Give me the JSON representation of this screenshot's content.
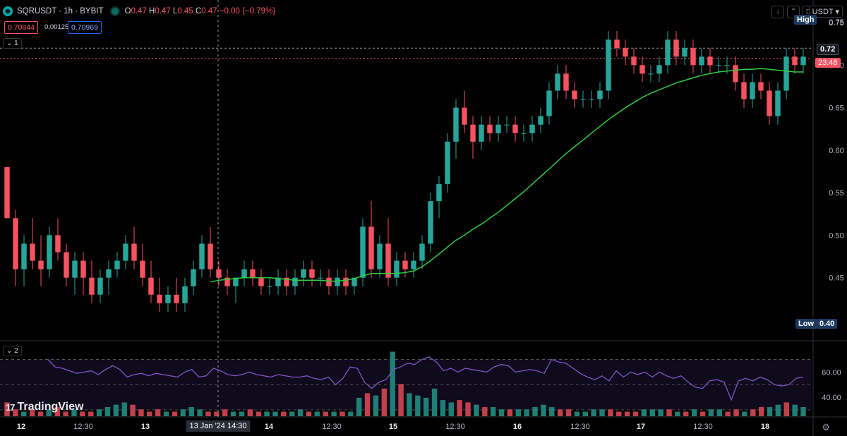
{
  "header": {
    "symbol": "SQRUSDT",
    "interval": "1h",
    "exchange": "BYBIT",
    "title": "SQRUSDT · 1h · BYBIT",
    "ohlc": {
      "o_label": "O",
      "o": "0.47",
      "h_label": "H",
      "h": "0.47",
      "l_label": "L",
      "l": "0.45",
      "c_label": "C",
      "c": "0.47",
      "change": "−0.00 (−0.79%)"
    },
    "bid": "0.70844",
    "spread": "0.00125",
    "ask": "0.70969",
    "pane1_label": "1",
    "pane2_label": "2",
    "currency": "USDT",
    "logo_text": "TradingView"
  },
  "colors": {
    "up": "#26a69a",
    "down": "#f7525f",
    "ma": "#2ecc40",
    "rsi": "#7e57c2",
    "crosshair": "#9598a1"
  },
  "chart_data": [
    {
      "type": "candlestick",
      "symbol": "SQRUSDT",
      "interval": "1h",
      "ylim": [
        0.38,
        0.76
      ],
      "y_ticks": [
        "0.45",
        "0.50",
        "0.55",
        "0.60",
        "0.65",
        "0.70",
        "0.75"
      ],
      "x_ticks": [
        "12",
        "12:30",
        "13",
        "13 Jan '24",
        "14:30",
        "14",
        "12:30",
        "15",
        "12:30",
        "16",
        "12:30",
        "17",
        "12:30",
        "18"
      ],
      "crosshair_time": "13 Jan '24  14:30",
      "last_price": "0.72",
      "countdown": "23:48",
      "high_label": "High",
      "high_value": "0.75",
      "low_label": "Low",
      "low_value": "0.40",
      "ohlc": [
        [
          0.58,
          0.58,
          0.52,
          0.52
        ],
        [
          0.52,
          0.53,
          0.44,
          0.46
        ],
        [
          0.46,
          0.5,
          0.44,
          0.49
        ],
        [
          0.49,
          0.52,
          0.46,
          0.47
        ],
        [
          0.47,
          0.5,
          0.44,
          0.46
        ],
        [
          0.46,
          0.51,
          0.45,
          0.5
        ],
        [
          0.5,
          0.52,
          0.47,
          0.48
        ],
        [
          0.48,
          0.49,
          0.44,
          0.45
        ],
        [
          0.45,
          0.48,
          0.43,
          0.47
        ],
        [
          0.47,
          0.48,
          0.43,
          0.45
        ],
        [
          0.45,
          0.47,
          0.42,
          0.43
        ],
        [
          0.43,
          0.46,
          0.42,
          0.45
        ],
        [
          0.45,
          0.47,
          0.43,
          0.46
        ],
        [
          0.46,
          0.48,
          0.45,
          0.47
        ],
        [
          0.47,
          0.5,
          0.46,
          0.49
        ],
        [
          0.49,
          0.51,
          0.46,
          0.47
        ],
        [
          0.47,
          0.49,
          0.44,
          0.45
        ],
        [
          0.45,
          0.47,
          0.42,
          0.43
        ],
        [
          0.43,
          0.45,
          0.41,
          0.42
        ],
        [
          0.42,
          0.44,
          0.41,
          0.43
        ],
        [
          0.43,
          0.45,
          0.41,
          0.42
        ],
        [
          0.42,
          0.45,
          0.41,
          0.44
        ],
        [
          0.44,
          0.47,
          0.43,
          0.46
        ],
        [
          0.46,
          0.5,
          0.45,
          0.49
        ],
        [
          0.49,
          0.51,
          0.45,
          0.46
        ],
        [
          0.46,
          0.47,
          0.44,
          0.45
        ],
        [
          0.45,
          0.46,
          0.43,
          0.44
        ],
        [
          0.44,
          0.45,
          0.42,
          0.45
        ],
        [
          0.45,
          0.47,
          0.44,
          0.46
        ],
        [
          0.46,
          0.47,
          0.44,
          0.45
        ],
        [
          0.45,
          0.46,
          0.43,
          0.44
        ],
        [
          0.44,
          0.45,
          0.43,
          0.44
        ],
        [
          0.44,
          0.46,
          0.43,
          0.45
        ],
        [
          0.45,
          0.46,
          0.43,
          0.44
        ],
        [
          0.44,
          0.46,
          0.43,
          0.45
        ],
        [
          0.45,
          0.47,
          0.44,
          0.46
        ],
        [
          0.46,
          0.47,
          0.44,
          0.45
        ],
        [
          0.45,
          0.46,
          0.44,
          0.45
        ],
        [
          0.45,
          0.46,
          0.43,
          0.44
        ],
        [
          0.44,
          0.46,
          0.43,
          0.45
        ],
        [
          0.45,
          0.46,
          0.43,
          0.44
        ],
        [
          0.44,
          0.45,
          0.43,
          0.45
        ],
        [
          0.45,
          0.52,
          0.44,
          0.51
        ],
        [
          0.51,
          0.54,
          0.45,
          0.46
        ],
        [
          0.46,
          0.5,
          0.45,
          0.49
        ],
        [
          0.49,
          0.52,
          0.44,
          0.45
        ],
        [
          0.45,
          0.48,
          0.44,
          0.47
        ],
        [
          0.47,
          0.48,
          0.45,
          0.46
        ],
        [
          0.46,
          0.48,
          0.45,
          0.47
        ],
        [
          0.47,
          0.5,
          0.46,
          0.49
        ],
        [
          0.49,
          0.55,
          0.48,
          0.54
        ],
        [
          0.54,
          0.57,
          0.52,
          0.56
        ],
        [
          0.56,
          0.62,
          0.55,
          0.61
        ],
        [
          0.61,
          0.66,
          0.59,
          0.65
        ],
        [
          0.65,
          0.67,
          0.62,
          0.63
        ],
        [
          0.63,
          0.64,
          0.59,
          0.61
        ],
        [
          0.61,
          0.64,
          0.6,
          0.63
        ],
        [
          0.63,
          0.64,
          0.61,
          0.62
        ],
        [
          0.62,
          0.64,
          0.61,
          0.63
        ],
        [
          0.63,
          0.64,
          0.62,
          0.63
        ],
        [
          0.63,
          0.64,
          0.61,
          0.62
        ],
        [
          0.62,
          0.63,
          0.61,
          0.62
        ],
        [
          0.62,
          0.64,
          0.61,
          0.63
        ],
        [
          0.63,
          0.65,
          0.62,
          0.64
        ],
        [
          0.64,
          0.68,
          0.63,
          0.67
        ],
        [
          0.67,
          0.7,
          0.66,
          0.69
        ],
        [
          0.69,
          0.7,
          0.66,
          0.67
        ],
        [
          0.67,
          0.68,
          0.65,
          0.66
        ],
        [
          0.66,
          0.67,
          0.65,
          0.66
        ],
        [
          0.66,
          0.67,
          0.65,
          0.66
        ],
        [
          0.66,
          0.68,
          0.65,
          0.67
        ],
        [
          0.67,
          0.74,
          0.66,
          0.73
        ],
        [
          0.73,
          0.74,
          0.71,
          0.72
        ],
        [
          0.72,
          0.73,
          0.7,
          0.71
        ],
        [
          0.71,
          0.72,
          0.69,
          0.7
        ],
        [
          0.7,
          0.71,
          0.68,
          0.69
        ],
        [
          0.69,
          0.7,
          0.68,
          0.69
        ],
        [
          0.69,
          0.71,
          0.68,
          0.7
        ],
        [
          0.7,
          0.74,
          0.69,
          0.73
        ],
        [
          0.73,
          0.74,
          0.7,
          0.71
        ],
        [
          0.71,
          0.73,
          0.7,
          0.72
        ],
        [
          0.72,
          0.73,
          0.69,
          0.7
        ],
        [
          0.7,
          0.72,
          0.69,
          0.71
        ],
        [
          0.71,
          0.72,
          0.69,
          0.7
        ],
        [
          0.7,
          0.71,
          0.69,
          0.7
        ],
        [
          0.7,
          0.71,
          0.69,
          0.7
        ],
        [
          0.7,
          0.71,
          0.67,
          0.68
        ],
        [
          0.68,
          0.69,
          0.65,
          0.66
        ],
        [
          0.66,
          0.69,
          0.65,
          0.68
        ],
        [
          0.68,
          0.69,
          0.66,
          0.67
        ],
        [
          0.67,
          0.68,
          0.63,
          0.64
        ],
        [
          0.64,
          0.68,
          0.63,
          0.67
        ],
        [
          0.67,
          0.72,
          0.66,
          0.71
        ],
        [
          0.71,
          0.72,
          0.69,
          0.7
        ],
        [
          0.7,
          0.72,
          0.69,
          0.71
        ]
      ],
      "ma_line": {
        "name": "",
        "values": [
          0.45,
          0.45,
          0.45,
          0.45,
          0.45,
          0.45,
          0.45,
          0.45,
          0.45,
          0.45,
          0.45,
          0.45,
          0.45,
          0.45,
          0.45,
          0.45,
          0.45,
          0.45,
          0.45,
          0.45,
          0.45,
          0.45,
          0.45,
          0.45,
          0.445,
          0.447,
          0.448,
          0.449,
          0.45,
          0.45,
          0.45,
          0.45,
          0.449,
          0.448,
          0.447,
          0.447,
          0.447,
          0.447,
          0.446,
          0.446,
          0.447,
          0.449,
          0.452,
          0.455,
          0.455,
          0.455,
          0.455,
          0.456,
          0.458,
          0.463,
          0.47,
          0.478,
          0.486,
          0.494,
          0.5,
          0.507,
          0.513,
          0.52,
          0.527,
          0.535,
          0.543,
          0.551,
          0.56,
          0.569,
          0.578,
          0.587,
          0.596,
          0.604,
          0.612,
          0.62,
          0.628,
          0.636,
          0.643,
          0.65,
          0.656,
          0.662,
          0.667,
          0.671,
          0.675,
          0.679,
          0.682,
          0.685,
          0.688,
          0.69,
          0.692,
          0.693,
          0.694,
          0.695,
          0.695,
          0.696,
          0.695,
          0.694,
          0.693,
          0.692,
          0.692
        ]
      }
    },
    {
      "type": "line",
      "name": "",
      "ylim": [
        25,
        82
      ],
      "y_ticks": [
        "40.00",
        "60.00"
      ],
      "values": [
        70,
        64,
        63,
        61,
        59,
        60,
        61,
        58,
        62,
        65,
        62,
        56,
        58,
        59,
        57,
        59,
        58,
        57,
        56,
        60,
        62,
        56,
        57,
        63,
        61,
        58,
        57,
        58,
        60,
        58,
        57,
        56,
        58,
        57,
        56,
        56,
        57,
        55,
        54,
        56,
        50,
        55,
        64,
        63,
        52,
        47,
        52,
        54,
        62,
        64,
        67,
        66,
        70,
        72,
        68,
        61,
        63,
        60,
        63,
        62,
        61,
        60,
        64,
        66,
        65,
        60,
        61,
        62,
        61,
        59,
        70,
        68,
        67,
        63,
        59,
        56,
        54,
        57,
        53,
        61,
        56,
        60,
        58,
        60,
        56,
        60,
        57,
        55,
        57,
        52,
        48,
        47,
        53,
        54,
        52,
        38,
        53,
        55,
        53,
        56,
        54,
        50,
        49,
        50,
        55,
        56
      ]
    },
    {
      "type": "bar",
      "name": "",
      "ylim": [
        0,
        30
      ],
      "values": [
        6,
        3,
        2,
        3,
        2,
        3,
        4,
        2,
        3,
        2,
        2,
        3,
        4,
        5,
        6,
        5,
        3,
        2,
        3,
        2,
        2,
        3,
        4,
        3,
        2,
        2,
        3,
        2,
        2,
        3,
        2,
        2,
        2,
        2,
        2,
        3,
        2,
        2,
        2,
        2,
        2,
        2,
        8,
        10,
        9,
        12,
        28,
        14,
        10,
        9,
        8,
        12,
        7,
        6,
        7,
        6,
        5,
        4,
        4,
        3,
        3,
        3,
        3,
        4,
        5,
        4,
        3,
        3,
        2,
        2,
        3,
        3,
        3,
        2,
        2,
        2,
        3,
        3,
        3,
        3,
        2,
        2,
        3,
        2,
        3,
        3,
        2,
        3,
        2,
        3,
        4,
        4,
        5,
        6,
        5,
        4
      ],
      "colors_up_down": true
    }
  ]
}
